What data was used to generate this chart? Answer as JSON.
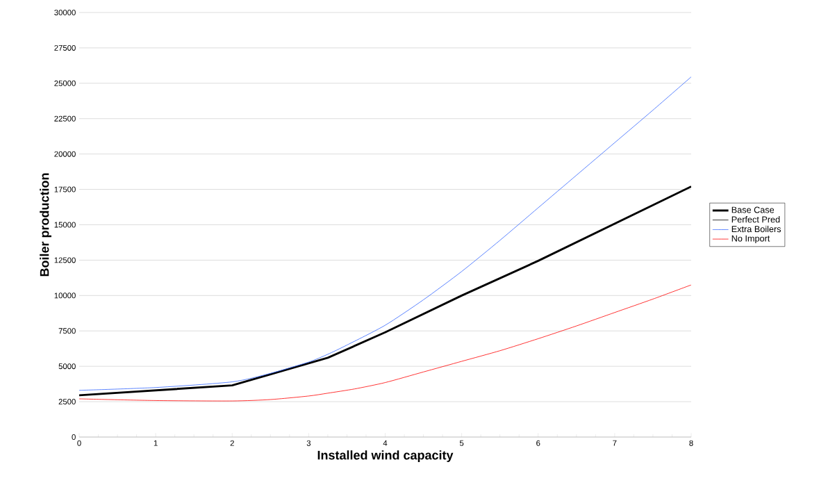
{
  "chart_data": {
    "type": "line",
    "xlabel": "Installed wind capacity",
    "ylabel": "Boiler production",
    "xlim": [
      0,
      8
    ],
    "xticks": [
      0,
      1,
      2,
      3,
      4,
      5,
      6,
      7,
      8
    ],
    "ylim": [
      0,
      30000
    ],
    "yticks": [
      0,
      2500,
      5000,
      7500,
      10000,
      12500,
      15000,
      17500,
      20000,
      22500,
      25000,
      27500,
      30000
    ],
    "grid": "y",
    "legend": "right",
    "marker": "none",
    "line_style": "solid",
    "series": [
      {
        "name": "Base Case",
        "color": "#000000",
        "x": [
          0,
          2,
          3.25,
          4,
          5,
          6,
          8
        ],
        "values": [
          2950,
          3650,
          5600,
          7400,
          10000,
          12450,
          17700
        ]
      },
      {
        "name": "Perfect Pred",
        "color": "#000000",
        "values": [
          null,
          null,
          null,
          null,
          null,
          null,
          null
        ]
      },
      {
        "name": "Extra Boilers",
        "color": "#3366ff",
        "x": [
          0,
          1,
          2,
          2.5,
          3,
          3.25,
          3.5,
          4,
          4.5,
          5,
          5.5,
          6,
          6.5,
          7,
          7.5,
          8
        ],
        "values": [
          3300,
          3500,
          3900,
          4500,
          5300,
          5850,
          6500,
          7900,
          9700,
          11700,
          13900,
          16200,
          18500,
          20800,
          23100,
          25450
        ]
      },
      {
        "name": "No Import",
        "color": "#ff0000",
        "x": [
          0,
          1,
          2,
          2.5,
          3,
          3.25,
          3.6,
          4,
          4.5,
          5,
          5.5,
          6,
          6.5,
          7,
          7.5,
          8
        ],
        "values": [
          2700,
          2580,
          2550,
          2650,
          2900,
          3100,
          3400,
          3850,
          4600,
          5350,
          6100,
          6950,
          7850,
          8800,
          9750,
          10750
        ]
      }
    ]
  }
}
